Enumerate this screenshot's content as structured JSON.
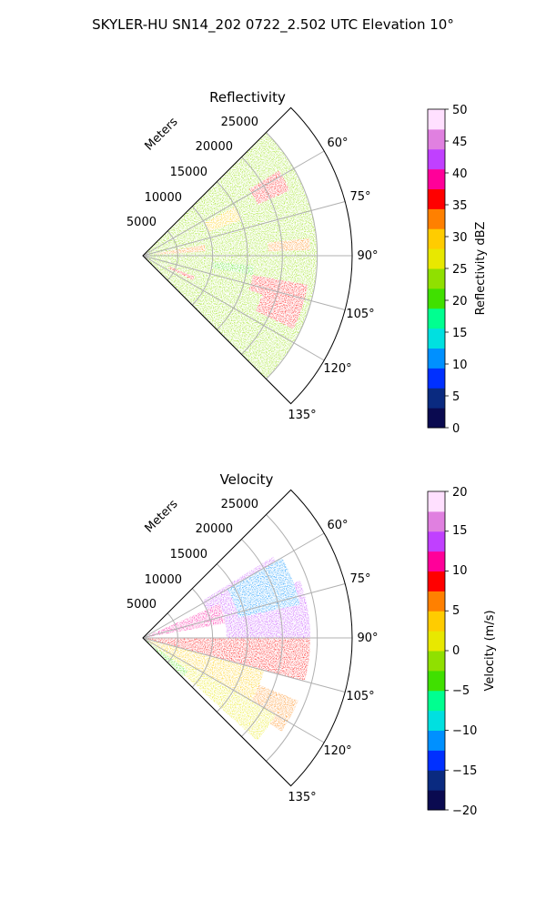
{
  "figure": {
    "title": "SKYLER-HU  SN14_202  0722_2.502 UTC Elevation 10°"
  },
  "panels": [
    {
      "title": "Reflectivity",
      "range_axis_label": "Meters",
      "range_ticks": [
        "5000",
        "10000",
        "15000",
        "20000",
        "25000"
      ],
      "azimuth_ticks": [
        "60°",
        "75°",
        "90°",
        "105°",
        "120°",
        "135°"
      ],
      "colorbar": {
        "label": "Reflectivity dBZ",
        "ticks": [
          "0",
          "5",
          "10",
          "15",
          "20",
          "25",
          "30",
          "35",
          "40",
          "45",
          "50"
        ]
      }
    },
    {
      "title": "Velocity",
      "range_axis_label": "Meters",
      "range_ticks": [
        "5000",
        "10000",
        "15000",
        "20000",
        "25000"
      ],
      "azimuth_ticks": [
        "60°",
        "75°",
        "90°",
        "105°",
        "120°",
        "135°"
      ],
      "colorbar": {
        "label": "Velocity (m/s)",
        "ticks": [
          "−20",
          "−15",
          "−10",
          "−5",
          "0",
          "5",
          "10",
          "15",
          "20"
        ]
      }
    }
  ],
  "chart_data": [
    {
      "type": "heatmap",
      "subtype": "polar-sector PPI",
      "title": "Reflectivity",
      "azimuth_range_deg": [
        45,
        135
      ],
      "range_limit_m": 30000,
      "range_ticks_m": [
        5000,
        10000,
        15000,
        20000,
        25000
      ],
      "azimuth_ticks_deg": [
        60,
        75,
        90,
        105,
        120,
        135
      ],
      "grid": true,
      "colorbar_range": [
        0,
        50
      ],
      "colorbar_ticks": [
        0,
        5,
        10,
        15,
        20,
        25,
        30,
        35,
        40,
        45,
        50
      ],
      "colorscale": [
        "#0a0a50",
        "#0a2a80",
        "#0030ff",
        "#0090ff",
        "#00e0e0",
        "#00ff90",
        "#40e000",
        "#90e000",
        "#e8e800",
        "#ffcc00",
        "#ff8000",
        "#ff0000",
        "#ff0099",
        "#c040ff",
        "#e080e0",
        "#ffe0ff"
      ],
      "regions": [
        {
          "az": [
            45,
            135
          ],
          "range_m": [
            0,
            25000
          ],
          "value": 22
        },
        {
          "az": [
            58,
            66
          ],
          "range_m": [
            18000,
            23000
          ],
          "value": 36
        },
        {
          "az": [
            62,
            70
          ],
          "range_m": [
            10000,
            15000
          ],
          "value": 30
        },
        {
          "az": [
            80,
            86
          ],
          "range_m": [
            2000,
            9000
          ],
          "value": 33
        },
        {
          "az": [
            84,
            88
          ],
          "range_m": [
            18000,
            24000
          ],
          "value": 34
        },
        {
          "az": [
            100,
            108
          ],
          "range_m": [
            16000,
            24000
          ],
          "value": 36
        },
        {
          "az": [
            107,
            116
          ],
          "range_m": [
            18000,
            24000
          ],
          "value": 37
        },
        {
          "az": [
            112,
            116
          ],
          "range_m": [
            4000,
            8000
          ],
          "value": 35
        },
        {
          "az": [
            95,
            100
          ],
          "range_m": [
            10000,
            16000
          ],
          "value": 20
        }
      ]
    },
    {
      "type": "heatmap",
      "subtype": "polar-sector PPI",
      "title": "Velocity",
      "azimuth_range_deg": [
        45,
        135
      ],
      "range_limit_m": 30000,
      "range_ticks_m": [
        5000,
        10000,
        15000,
        20000,
        25000
      ],
      "azimuth_ticks_deg": [
        60,
        75,
        90,
        105,
        120,
        135
      ],
      "grid": true,
      "colorbar_range": [
        -20,
        20
      ],
      "colorbar_ticks": [
        -20,
        -15,
        -10,
        -5,
        0,
        5,
        10,
        15,
        20
      ],
      "colorscale": [
        "#0a0a50",
        "#0a2a80",
        "#0030ff",
        "#0090ff",
        "#00e0e0",
        "#00ff90",
        "#40e000",
        "#90e000",
        "#e8e800",
        "#ffcc00",
        "#ff8000",
        "#ff0000",
        "#ff0099",
        "#c040ff",
        "#e080e0",
        "#ffe0ff"
      ],
      "regions": [
        {
          "az": [
            58,
            70
          ],
          "range_m": [
            10000,
            22000
          ],
          "value": 14
        },
        {
          "az": [
            66,
            80
          ],
          "range_m": [
            0,
            12000
          ],
          "value": 11
        },
        {
          "az": [
            70,
            90
          ],
          "range_m": [
            12000,
            24000
          ],
          "value": 14
        },
        {
          "az": [
            60,
            78
          ],
          "range_m": [
            14000,
            23000
          ],
          "value": -11
        },
        {
          "az": [
            90,
            105
          ],
          "range_m": [
            0,
            24000
          ],
          "value": 9
        },
        {
          "az": [
            105,
            120
          ],
          "range_m": [
            0,
            18000
          ],
          "value": 3
        },
        {
          "az": [
            112,
            124
          ],
          "range_m": [
            18000,
            24000
          ],
          "value": 6
        },
        {
          "az": [
            120,
            132
          ],
          "range_m": [
            0,
            22000
          ],
          "value": 1
        },
        {
          "az": [
            126,
            134
          ],
          "range_m": [
            0,
            8000
          ],
          "value": -4
        }
      ]
    }
  ]
}
